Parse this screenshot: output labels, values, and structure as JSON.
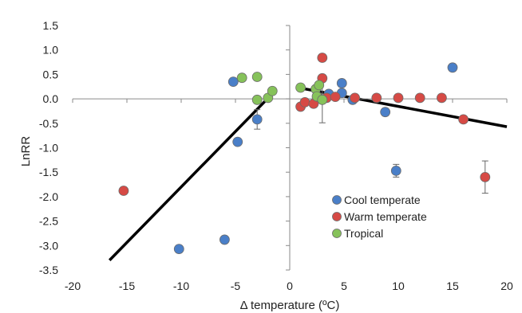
{
  "chart_data": {
    "type": "scatter",
    "xlabel": "Δ temperature (ºC)",
    "ylabel": "LnRR",
    "xlim": [
      -20,
      20
    ],
    "ylim": [
      -3.5,
      1.5
    ],
    "x_ticks": [
      "-20",
      "-15",
      "-10",
      "-5",
      "0",
      "5",
      "10",
      "15",
      "20"
    ],
    "y_ticks": [
      "1.5",
      "1.0",
      "0.5",
      "0.0",
      "-0.5",
      "-1.0",
      "-1.5",
      "-2.0",
      "-2.5",
      "-3.0",
      "-3.5"
    ],
    "grid": false,
    "legend_position": "bottom-right",
    "colors": {
      "cool": "#4a7fc8",
      "warm": "#d64a45",
      "tropical": "#86c25a",
      "edge": "#6b6b6b",
      "trend": "#000000",
      "axis": "#8a8a8a"
    },
    "series": [
      {
        "name": "Cool temperate",
        "color": "#4a7fc8",
        "points": [
          {
            "x": -5.2,
            "y": 0.35
          },
          {
            "x": -3.0,
            "y": -0.42,
            "err": 0.2
          },
          {
            "x": -4.8,
            "y": -0.88
          },
          {
            "x": -10.2,
            "y": -3.07
          },
          {
            "x": -6.0,
            "y": -2.88
          },
          {
            "x": 3.6,
            "y": 0.1
          },
          {
            "x": 4.8,
            "y": 0.32
          },
          {
            "x": 4.8,
            "y": 0.12
          },
          {
            "x": 5.8,
            "y": -0.02
          },
          {
            "x": 8.8,
            "y": -0.27
          },
          {
            "x": 9.8,
            "y": -1.47,
            "err": 0.13
          },
          {
            "x": 15.0,
            "y": 0.64
          }
        ]
      },
      {
        "name": "Warm temperate",
        "color": "#d64a45",
        "points": [
          {
            "x": -15.3,
            "y": -1.88
          },
          {
            "x": 1.0,
            "y": -0.16
          },
          {
            "x": 1.4,
            "y": -0.07
          },
          {
            "x": 2.2,
            "y": -0.1
          },
          {
            "x": 2.6,
            "y": 0.04
          },
          {
            "x": 3.0,
            "y": 0.84,
            "err": 0.06
          },
          {
            "x": 3.0,
            "y": 0.42
          },
          {
            "x": 3.4,
            "y": 0.02
          },
          {
            "x": 4.2,
            "y": 0.04
          },
          {
            "x": 6.0,
            "y": 0.02
          },
          {
            "x": 8.0,
            "y": 0.02
          },
          {
            "x": 10.0,
            "y": 0.02
          },
          {
            "x": 12.0,
            "y": 0.02
          },
          {
            "x": 14.0,
            "y": 0.02
          },
          {
            "x": 16.0,
            "y": -0.42
          },
          {
            "x": 18.0,
            "y": -1.6,
            "err": 0.33
          }
        ]
      },
      {
        "name": "Tropical",
        "color": "#86c25a",
        "points": [
          {
            "x": -4.4,
            "y": 0.43
          },
          {
            "x": -3.0,
            "y": 0.45
          },
          {
            "x": -3.0,
            "y": -0.02
          },
          {
            "x": -2.0,
            "y": 0.02
          },
          {
            "x": -1.6,
            "y": 0.16
          },
          {
            "x": 1.0,
            "y": 0.23
          },
          {
            "x": 2.4,
            "y": 0.2
          },
          {
            "x": 2.7,
            "y": 0.28
          },
          {
            "x": 2.5,
            "y": 0.05
          },
          {
            "x": 3.0,
            "y": -0.02,
            "err": 0.47
          }
        ]
      }
    ],
    "trend_lines": [
      {
        "x": [
          -16.6,
          -1.4
        ],
        "y": [
          -3.3,
          0.15
        ]
      },
      {
        "x": [
          1.0,
          20.0
        ],
        "y": [
          0.22,
          -0.57
        ]
      }
    ]
  }
}
